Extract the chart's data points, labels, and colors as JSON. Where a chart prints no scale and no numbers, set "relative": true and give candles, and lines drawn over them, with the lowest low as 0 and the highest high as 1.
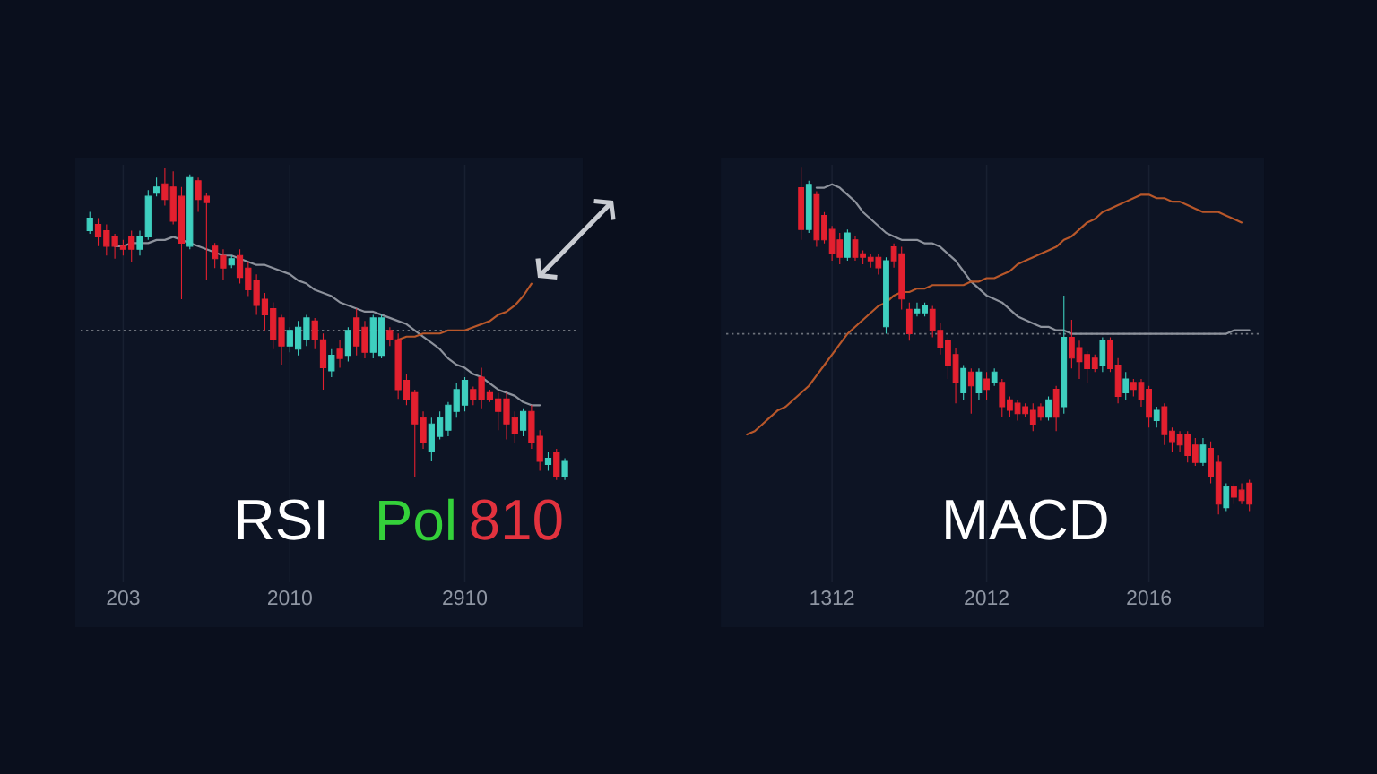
{
  "chart_data": [
    {
      "type": "candlestick",
      "relative": true,
      "categories": [
        null,
        null,
        null,
        null,
        "203",
        null,
        null,
        null,
        null,
        null,
        null,
        null,
        null,
        null,
        null,
        null,
        null,
        null,
        null,
        null,
        null,
        null,
        null,
        null,
        "2010",
        null,
        null,
        null,
        null,
        null,
        null,
        null,
        null,
        null,
        null,
        null,
        null,
        null,
        null,
        null,
        null,
        null,
        null,
        null,
        null,
        "2910",
        null,
        null,
        null,
        null,
        null,
        null,
        null,
        null,
        null,
        null,
        null,
        null
      ],
      "ohlc": [
        [
          0.8,
          0.86,
          0.79,
          0.84
        ],
        [
          0.82,
          0.84,
          0.75,
          0.78
        ],
        [
          0.8,
          0.82,
          0.72,
          0.75
        ],
        [
          0.78,
          0.79,
          0.71,
          0.75
        ],
        [
          0.75,
          0.77,
          0.72,
          0.74
        ],
        [
          0.78,
          0.8,
          0.7,
          0.74
        ],
        [
          0.74,
          0.8,
          0.72,
          0.78
        ],
        [
          0.78,
          0.93,
          0.77,
          0.91
        ],
        [
          0.92,
          0.97,
          0.91,
          0.94
        ],
        [
          0.95,
          1.0,
          0.88,
          0.9
        ],
        [
          0.94,
          0.99,
          0.82,
          0.83
        ],
        [
          0.91,
          0.94,
          0.58,
          0.76
        ],
        [
          0.75,
          0.98,
          0.74,
          0.97
        ],
        [
          0.96,
          0.97,
          0.86,
          0.9
        ],
        [
          0.91,
          0.92,
          0.64,
          0.89
        ],
        [
          0.75,
          0.76,
          0.68,
          0.71
        ],
        [
          0.72,
          0.74,
          0.64,
          0.68
        ],
        [
          0.69,
          0.72,
          0.68,
          0.71
        ],
        [
          0.72,
          0.74,
          0.63,
          0.65
        ],
        [
          0.68,
          0.7,
          0.59,
          0.61
        ],
        [
          0.64,
          0.66,
          0.53,
          0.56
        ],
        [
          0.58,
          0.6,
          0.48,
          0.53
        ],
        [
          0.55,
          0.57,
          0.42,
          0.45
        ],
        [
          0.52,
          0.53,
          0.37,
          0.43
        ],
        [
          0.43,
          0.49,
          0.41,
          0.48
        ],
        [
          0.42,
          0.51,
          0.4,
          0.49
        ],
        [
          0.45,
          0.53,
          0.43,
          0.52
        ],
        [
          0.51,
          0.52,
          0.42,
          0.45
        ],
        [
          0.45,
          0.47,
          0.29,
          0.36
        ],
        [
          0.35,
          0.42,
          0.33,
          0.4
        ],
        [
          0.42,
          0.45,
          0.36,
          0.39
        ],
        [
          0.4,
          0.49,
          0.38,
          0.48
        ],
        [
          0.52,
          0.55,
          0.4,
          0.43
        ],
        [
          0.49,
          0.51,
          0.39,
          0.41
        ],
        [
          0.41,
          0.53,
          0.39,
          0.52
        ],
        [
          0.4,
          0.53,
          0.39,
          0.52
        ],
        [
          0.48,
          0.49,
          0.43,
          0.45
        ],
        [
          0.45,
          0.47,
          0.26,
          0.29
        ],
        [
          0.32,
          0.34,
          0.24,
          0.26
        ],
        [
          0.28,
          0.29,
          0.01,
          0.18
        ],
        [
          0.2,
          0.22,
          0.1,
          0.12
        ],
        [
          0.09,
          0.2,
          0.06,
          0.18
        ],
        [
          0.14,
          0.22,
          0.13,
          0.2
        ],
        [
          0.16,
          0.25,
          0.14,
          0.24
        ],
        [
          0.22,
          0.31,
          0.2,
          0.29
        ],
        [
          0.24,
          0.33,
          0.22,
          0.32
        ],
        [
          0.29,
          0.3,
          0.24,
          0.26
        ],
        [
          0.33,
          0.36,
          0.23,
          0.26
        ],
        [
          0.28,
          0.29,
          0.25,
          0.26
        ],
        [
          0.26,
          0.28,
          0.16,
          0.22
        ],
        [
          0.26,
          0.28,
          0.13,
          0.18
        ],
        [
          0.2,
          0.22,
          0.12,
          0.15
        ],
        [
          0.16,
          0.23,
          0.14,
          0.22
        ],
        [
          0.22,
          0.24,
          0.1,
          0.12
        ],
        [
          0.14,
          0.16,
          0.03,
          0.06
        ],
        [
          0.05,
          0.09,
          0.03,
          0.07
        ],
        [
          0.09,
          0.1,
          0.0,
          0.01
        ],
        [
          0.01,
          0.07,
          0.0,
          0.06
        ]
      ],
      "colors": [
        "#3ecfbf",
        "#e3202f",
        "#e3202f",
        "#e3202f",
        "#e3202f",
        "#e3202f",
        "#3ecfbf",
        "#3ecfbf",
        "#3ecfbf",
        "#e3202f",
        "#e3202f",
        "#e3202f",
        "#3ecfbf",
        "#e3202f",
        "#e3202f",
        "#e3202f",
        "#e3202f",
        "#3ecfbf",
        "#e3202f",
        "#e3202f",
        "#e3202f",
        "#e3202f",
        "#e3202f",
        "#e3202f",
        "#3ecfbf",
        "#3ecfbf",
        "#3ecfbf",
        "#e3202f",
        "#e3202f",
        "#3ecfbf",
        "#e3202f",
        "#3ecfbf",
        "#e3202f",
        "#e3202f",
        "#3ecfbf",
        "#3ecfbf",
        "#e3202f",
        "#e3202f",
        "#e3202f",
        "#e3202f",
        "#e3202f",
        "#3ecfbf",
        "#3ecfbf",
        "#3ecfbf",
        "#3ecfbf",
        "#3ecfbf",
        "#e3202f",
        "#e3202f",
        "#e3202f",
        "#e3202f",
        "#e3202f",
        "#e3202f",
        "#3ecfbf",
        "#e3202f",
        "#e3202f",
        "#3ecfbf",
        "#e3202f",
        "#3ecfbf"
      ],
      "series": [
        {
          "type": "line",
          "color": "#8d929c",
          "values": [
            null,
            null,
            null,
            0.75,
            0.75,
            0.76,
            0.76,
            0.76,
            0.77,
            0.77,
            0.78,
            0.77,
            0.76,
            0.75,
            0.74,
            0.73,
            0.72,
            0.72,
            0.71,
            0.7,
            0.69,
            0.69,
            0.68,
            0.67,
            0.66,
            0.64,
            0.63,
            0.61,
            0.6,
            0.59,
            0.57,
            0.56,
            0.55,
            0.54,
            0.54,
            0.53,
            0.52,
            0.51,
            0.5,
            0.48,
            0.46,
            0.44,
            0.42,
            0.39,
            0.37,
            0.36,
            0.34,
            0.33,
            0.31,
            0.29,
            0.28,
            0.27,
            0.25,
            0.24,
            0.24,
            null,
            null,
            null
          ]
        },
        {
          "type": "line",
          "color": "#b8572a",
          "values": [
            null,
            null,
            null,
            null,
            null,
            null,
            null,
            null,
            null,
            null,
            null,
            null,
            null,
            null,
            null,
            null,
            null,
            null,
            null,
            null,
            null,
            null,
            null,
            null,
            null,
            null,
            null,
            null,
            null,
            null,
            null,
            null,
            null,
            null,
            null,
            null,
            null,
            0.45,
            0.46,
            0.46,
            0.47,
            0.47,
            0.47,
            0.48,
            0.48,
            0.48,
            0.49,
            0.5,
            0.51,
            0.53,
            0.54,
            0.56,
            0.59,
            0.63,
            null,
            null,
            null,
            null
          ]
        }
      ],
      "grid": "x",
      "tick_labels": "x",
      "ref_lines": [
        {
          "axis": "y",
          "value": 0.48,
          "color": "#6c717a",
          "line_style": "dotted"
        }
      ],
      "annotations": [
        "RSI",
        "Pol",
        "810"
      ]
    },
    {
      "type": "candlestick",
      "relative": true,
      "categories": [
        null,
        null,
        null,
        null,
        null,
        null,
        null,
        null,
        null,
        null,
        null,
        null,
        null,
        "1312",
        null,
        null,
        null,
        null,
        null,
        null,
        null,
        null,
        null,
        null,
        null,
        null,
        null,
        null,
        null,
        null,
        null,
        null,
        null,
        "2012",
        null,
        null,
        null,
        null,
        null,
        null,
        null,
        null,
        null,
        null,
        null,
        null,
        null,
        null,
        null,
        null,
        null,
        null,
        null,
        null,
        "2016",
        null,
        null,
        null,
        null,
        null,
        null,
        null,
        null,
        null,
        null,
        null,
        null,
        null
      ],
      "ohlc": [
        null,
        null,
        null,
        null,
        null,
        null,
        null,
        null,
        null,
        [
          0.94,
          1.0,
          0.79,
          0.82
        ],
        [
          0.82,
          0.96,
          0.81,
          0.95
        ],
        [
          0.92,
          0.93,
          0.77,
          0.79
        ],
        [
          0.86,
          0.87,
          0.78,
          0.79
        ],
        [
          0.82,
          0.83,
          0.73,
          0.75
        ],
        [
          0.79,
          0.81,
          0.72,
          0.74
        ],
        [
          0.74,
          0.82,
          0.73,
          0.81
        ],
        [
          0.79,
          0.8,
          0.73,
          0.74
        ],
        [
          0.75,
          0.76,
          0.72,
          0.74
        ],
        [
          0.74,
          0.75,
          0.71,
          0.73
        ],
        [
          0.74,
          0.75,
          0.69,
          0.71
        ],
        [
          0.54,
          0.74,
          0.52,
          0.73
        ],
        [
          0.77,
          0.78,
          0.71,
          0.73
        ],
        [
          0.75,
          0.77,
          0.59,
          0.62
        ],
        [
          0.59,
          0.61,
          0.5,
          0.52
        ],
        [
          0.58,
          0.61,
          0.57,
          0.59
        ],
        [
          0.58,
          0.61,
          0.57,
          0.6
        ],
        [
          0.59,
          0.6,
          0.51,
          0.53
        ],
        [
          0.53,
          0.55,
          0.46,
          0.48
        ],
        [
          0.5,
          0.51,
          0.39,
          0.43
        ],
        [
          0.46,
          0.48,
          0.32,
          0.38
        ],
        [
          0.35,
          0.43,
          0.33,
          0.42
        ],
        [
          0.41,
          0.42,
          0.29,
          0.37
        ],
        [
          0.35,
          0.42,
          0.33,
          0.41
        ],
        [
          0.39,
          0.41,
          0.33,
          0.36
        ],
        [
          0.38,
          0.42,
          0.37,
          0.41
        ],
        [
          0.38,
          0.39,
          0.28,
          0.31
        ],
        [
          0.33,
          0.34,
          0.28,
          0.3
        ],
        [
          0.32,
          0.33,
          0.27,
          0.29
        ],
        [
          0.31,
          0.32,
          0.28,
          0.29
        ],
        [
          0.3,
          0.32,
          0.24,
          0.26
        ],
        [
          0.31,
          0.32,
          0.27,
          0.28
        ],
        [
          0.28,
          0.34,
          0.27,
          0.33
        ],
        [
          0.36,
          0.37,
          0.24,
          0.28
        ],
        [
          0.31,
          0.63,
          0.29,
          0.51
        ],
        [
          0.51,
          0.56,
          0.42,
          0.45
        ],
        [
          0.48,
          0.5,
          0.39,
          0.44
        ],
        [
          0.46,
          0.47,
          0.38,
          0.42
        ],
        [
          0.45,
          0.46,
          0.41,
          0.42
        ],
        [
          0.43,
          0.51,
          0.41,
          0.5
        ],
        [
          0.5,
          0.51,
          0.41,
          0.42
        ],
        [
          0.43,
          0.45,
          0.32,
          0.34
        ],
        [
          0.35,
          0.41,
          0.33,
          0.39
        ],
        [
          0.38,
          0.39,
          0.34,
          0.36
        ],
        [
          0.38,
          0.39,
          0.31,
          0.33
        ],
        [
          0.36,
          0.37,
          0.25,
          0.28
        ],
        [
          0.27,
          0.31,
          0.25,
          0.3
        ],
        [
          0.31,
          0.32,
          0.2,
          0.23
        ],
        [
          0.24,
          0.25,
          0.18,
          0.21
        ],
        [
          0.23,
          0.24,
          0.18,
          0.2
        ],
        [
          0.23,
          0.24,
          0.15,
          0.17
        ],
        [
          0.2,
          0.22,
          0.14,
          0.15
        ],
        [
          0.15,
          0.22,
          0.14,
          0.2
        ],
        [
          0.19,
          0.21,
          0.09,
          0.11
        ],
        [
          0.15,
          0.17,
          0.0,
          0.03
        ],
        [
          0.02,
          0.09,
          0.01,
          0.08
        ],
        [
          0.08,
          0.09,
          0.03,
          0.05
        ],
        [
          0.07,
          0.09,
          0.03,
          0.04
        ],
        [
          0.09,
          0.1,
          0.01,
          0.03
        ]
      ],
      "colors": [
        null,
        null,
        null,
        null,
        null,
        null,
        null,
        null,
        null,
        "#e3202f",
        "#3ecfbf",
        "#e3202f",
        "#e3202f",
        "#e3202f",
        "#e3202f",
        "#3ecfbf",
        "#e3202f",
        "#e3202f",
        "#e3202f",
        "#e3202f",
        "#3ecfbf",
        "#e3202f",
        "#e3202f",
        "#e3202f",
        "#3ecfbf",
        "#3ecfbf",
        "#e3202f",
        "#e3202f",
        "#e3202f",
        "#e3202f",
        "#3ecfbf",
        "#e3202f",
        "#3ecfbf",
        "#e3202f",
        "#3ecfbf",
        "#e3202f",
        "#e3202f",
        "#e3202f",
        "#e3202f",
        "#e3202f",
        "#e3202f",
        "#3ecfbf",
        "#e3202f",
        "#3ecfbf",
        "#e3202f",
        "#e3202f",
        "#e3202f",
        "#e3202f",
        "#3ecfbf",
        "#e3202f",
        "#e3202f",
        "#3ecfbf",
        "#e3202f",
        "#e3202f",
        "#e3202f",
        "#3ecfbf",
        "#e3202f",
        "#e3202f",
        "#e3202f",
        "#e3202f",
        "#e3202f",
        "#3ecfbf",
        "#e3202f",
        "#e3202f",
        "#3ecfbf",
        "#e3202f",
        "#e3202f",
        "#e3202f"
      ],
      "series": [
        {
          "type": "line",
          "color": "#8d929c",
          "values": [
            null,
            null,
            null,
            null,
            null,
            null,
            null,
            null,
            null,
            null,
            null,
            0.94,
            0.94,
            0.95,
            0.94,
            0.92,
            0.9,
            0.87,
            0.85,
            0.83,
            0.81,
            0.8,
            0.79,
            0.79,
            0.79,
            0.78,
            0.78,
            0.77,
            0.75,
            0.73,
            0.7,
            0.67,
            0.65,
            0.63,
            0.62,
            0.61,
            0.59,
            0.57,
            0.56,
            0.55,
            0.54,
            0.54,
            0.53,
            0.53,
            0.52,
            0.52,
            0.52,
            0.52,
            0.52,
            0.52,
            0.52,
            0.52,
            0.52,
            0.52,
            0.52,
            0.52,
            0.52,
            0.52,
            0.52,
            0.52,
            0.52,
            0.52,
            0.52,
            0.52,
            0.52,
            0.53,
            0.53,
            0.53
          ]
        },
        {
          "type": "line",
          "color": "#b8572a",
          "values": [
            null,
            null,
            0.23,
            0.24,
            0.26,
            0.28,
            0.3,
            0.31,
            0.33,
            0.35,
            0.37,
            0.4,
            0.43,
            0.46,
            0.49,
            0.52,
            0.54,
            0.56,
            0.58,
            0.6,
            0.61,
            0.63,
            0.64,
            0.64,
            0.65,
            0.65,
            0.66,
            0.66,
            0.66,
            0.66,
            0.66,
            0.67,
            0.67,
            0.68,
            0.68,
            0.69,
            0.7,
            0.72,
            0.73,
            0.74,
            0.75,
            0.76,
            0.77,
            0.79,
            0.8,
            0.82,
            0.84,
            0.85,
            0.87,
            0.88,
            0.89,
            0.9,
            0.91,
            0.92,
            0.92,
            0.91,
            0.91,
            0.9,
            0.9,
            0.89,
            0.88,
            0.87,
            0.87,
            0.87,
            0.86,
            0.85,
            0.84,
            null
          ]
        }
      ],
      "grid": "x",
      "tick_labels": "x",
      "ref_lines": [
        {
          "axis": "y",
          "value": 0.52,
          "color": "#6c717a",
          "line_style": "dotted"
        }
      ],
      "annotations": [
        "MACD"
      ]
    }
  ]
}
